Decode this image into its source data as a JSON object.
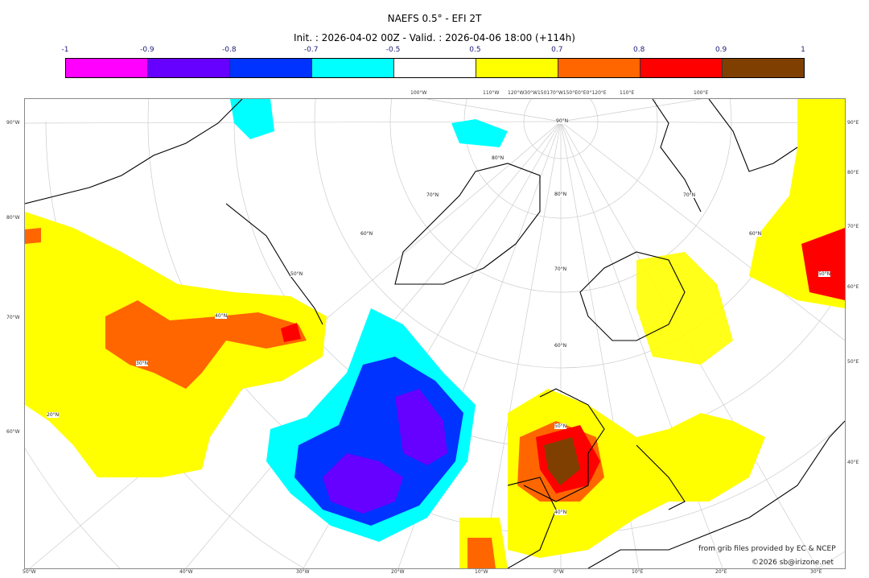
{
  "title": "NAEFS 0.5° - EFI 2T",
  "subtitle": "Init. : 2026-04-02 00Z - Valid. : 2026-04-06 18:00 (+114h)",
  "colorbar": {
    "ticks": [
      "-1",
      "-0.9",
      "-0.8",
      "-0.7",
      "-0.5",
      "0.5",
      "0.7",
      "0.8",
      "0.9",
      "1"
    ],
    "colors": [
      "#ff00ff",
      "#6600ff",
      "#0033ff",
      "#00ffff",
      "#ffffff",
      "#ffff00",
      "#ff6600",
      "#ff0000",
      "#7f3f00"
    ]
  },
  "axes": {
    "left": [
      "90°W",
      "80°W",
      "70°W",
      "60°W"
    ],
    "right": [
      "90°E",
      "80°E",
      "70°E",
      "60°E",
      "50°E",
      "40°E"
    ],
    "bottom": [
      "50°W",
      "40°W",
      "30°W",
      "20°W",
      "10°W",
      "0°W",
      "10°E",
      "20°E",
      "30°E"
    ],
    "top": [
      "100°W",
      "110°W",
      "120°W30°W150170°W150°E0°E0°120°E",
      "110°E",
      "100°E"
    ]
  },
  "grid_labels": [
    "90°N",
    "80°N",
    "80°N",
    "70°N",
    "70°N",
    "70°N",
    "60°N",
    "60°N",
    "60°N",
    "50°N",
    "50°N",
    "50°N",
    "40°N",
    "40°N",
    "30°N",
    "20°N"
  ],
  "credits": {
    "source": "from grib files provided by EC & NCEP",
    "copyright": "©2026 sb@irizone.net"
  }
}
